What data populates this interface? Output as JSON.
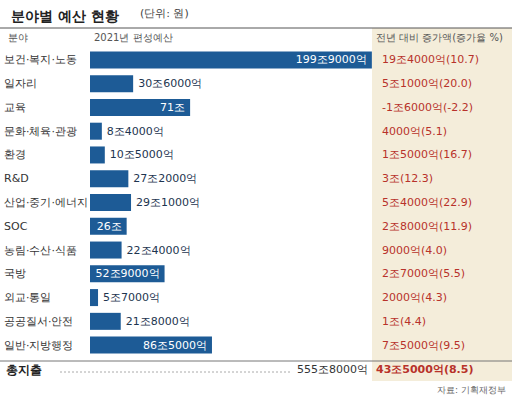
{
  "chart_data": {
    "type": "bar",
    "orientation": "horizontal",
    "title": "분야별 예산 현황",
    "subtitle": "(단위: 원)",
    "column_headers": [
      "분야",
      "2021년 편성예산",
      "전년 대비 증가액(증가율 %)"
    ],
    "categories": [
      "보건·복지·노동",
      "일자리",
      "교육",
      "문화·체육·관광",
      "환경",
      "R&D",
      "산업·중기·에너지",
      "SOC",
      "농림·수산·식품",
      "국방",
      "외교·통일",
      "공공질서·안전",
      "일반·지방행정"
    ],
    "values": [
      199.9,
      30.6,
      71,
      8.4,
      10.5,
      27.2,
      29.1,
      26,
      22.4,
      52.9,
      5.7,
      21.8,
      86.5
    ],
    "value_labels": [
      "199조9000억",
      "30조6000억",
      "71조",
      "8조4000억",
      "10조5000억",
      "27조2000억",
      "29조1000억",
      "26조",
      "22조4000억",
      "52조9000억",
      "5조7000억",
      "21조8000억",
      "86조5000억"
    ],
    "color": "#1d5b96",
    "data_labels": true,
    "xlim": [
      0,
      200
    ],
    "tick_labels": false,
    "grid": false,
    "increase": {
      "values": [
        19.4,
        5.1,
        -1.6,
        0.4,
        1.5,
        3,
        5.4,
        2.8,
        0.9,
        2.7,
        0.2,
        1,
        7.5
      ],
      "rates": [
        10.7,
        20.0,
        -2.2,
        5.1,
        16.7,
        12.3,
        22.9,
        11.9,
        4.0,
        5.5,
        4.3,
        4.4,
        9.5
      ],
      "value_labels": [
        "19조4000억(10.7)",
        "5조1000억(20.0)",
        "-1조6000억(-2.2)",
        "4000억(5.1)",
        "1조5000억(16.7)",
        "3조(12.3)",
        "5조4000억(22.9)",
        "2조8000억(11.9)",
        "9000억(4.0)",
        "2조7000억(5.5)",
        "2000억(4.3)",
        "1조(4.4)",
        "7조5000억(9.5)"
      ],
      "color": "#b8322a"
    },
    "total": {
      "label": "총지출",
      "value": 555.8,
      "value_label": "555조8000억",
      "increase": 43.5,
      "increase_rate": 8.5,
      "increase_label": "43조5000억(8.5)"
    },
    "source": "자료: 기획재정부"
  }
}
